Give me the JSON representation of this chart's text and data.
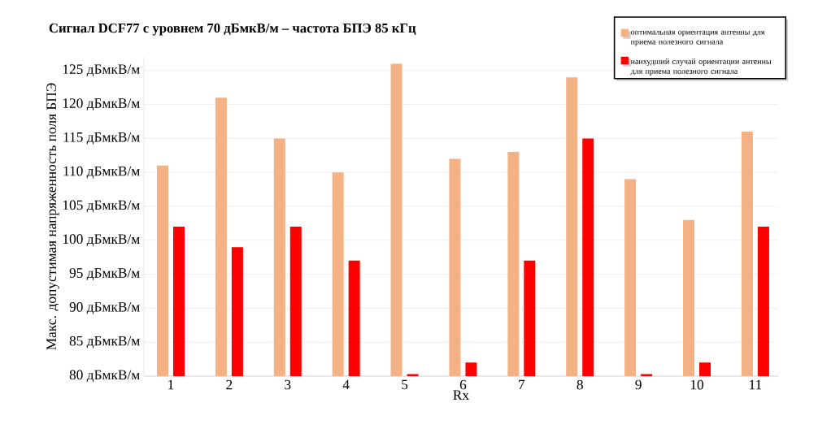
{
  "chart_data": {
    "type": "bar",
    "title": "Сигнал DCF77  с уровнем 70 дБмкВ/м – частота БПЭ 85 кГц",
    "xlabel": "Rx",
    "ylabel": "Макс. допустимая напряженность поля БПЭ",
    "categories": [
      "1",
      "2",
      "3",
      "4",
      "5",
      "6",
      "7",
      "8",
      "9",
      "10",
      "11"
    ],
    "series": [
      {
        "name": "оптимальная ориентация антенны для приема полезного сигнала",
        "color": "#f4b183",
        "values": [
          111,
          121,
          115,
          110,
          126,
          112,
          113,
          124,
          109,
          103,
          116
        ]
      },
      {
        "name": "наихудший случай ориентации антенны для приема полезного сигнала",
        "color": "#ff0000",
        "values": [
          102,
          99,
          102,
          97,
          80.3,
          82,
          97,
          115,
          80.3,
          82,
          102
        ]
      }
    ],
    "ylim": [
      80,
      127
    ],
    "yticks": [
      {
        "value": 80,
        "label": "80 дБмкВ/м"
      },
      {
        "value": 85,
        "label": "85 дБмкВ/м"
      },
      {
        "value": 90,
        "label": "90 дБмкВ/м"
      },
      {
        "value": 95,
        "label": "95 дБмкВ/м"
      },
      {
        "value": 100,
        "label": "100 дБмкВ/м"
      },
      {
        "value": 105,
        "label": "105 дБмкВ/м"
      },
      {
        "value": 110,
        "label": "110 дБмкВ/м"
      },
      {
        "value": 115,
        "label": "115 дБмкВ/м"
      },
      {
        "value": 120,
        "label": "120 дБмкВ/м"
      },
      {
        "value": 125,
        "label": "125 дБмкВ/м"
      }
    ],
    "grid": "y",
    "legend": "top right"
  }
}
